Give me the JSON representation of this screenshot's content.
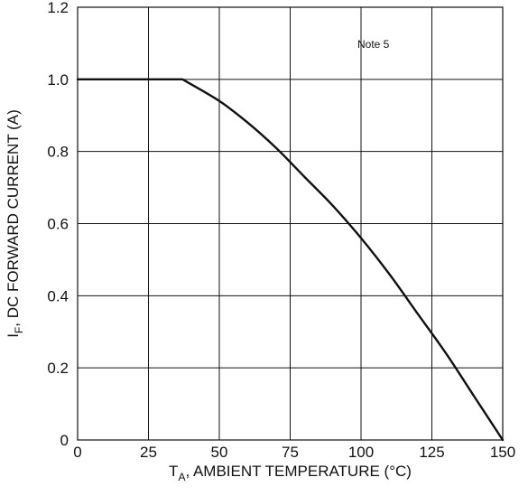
{
  "chart_data": {
    "type": "line",
    "title": "",
    "xlabel": {
      "main": "T",
      "sub": "A",
      "rest": ", AMBIENT TEMPERATURE (°C)"
    },
    "ylabel": {
      "main": "I",
      "sub": "F",
      "rest": ", DC FORWARD CURRENT (A)"
    },
    "xlim": [
      0,
      150
    ],
    "ylim": [
      0,
      1.2
    ],
    "x_ticks": [
      0,
      25,
      50,
      75,
      100,
      125,
      150
    ],
    "x_tick_labels": [
      "0",
      "25",
      "50",
      "75",
      "100",
      "125",
      "150"
    ],
    "y_ticks": [
      0,
      0.2,
      0.4,
      0.6,
      0.8,
      1.0,
      1.2
    ],
    "y_tick_labels": [
      "0",
      "0.2",
      "0.4",
      "0.6",
      "0.8",
      "1.0",
      "1.2"
    ],
    "grid": true,
    "annotation": "Note 5",
    "series": [
      {
        "x": [
          0,
          37,
          50,
          60,
          70,
          80,
          90,
          100,
          110,
          120,
          130,
          140,
          150
        ],
        "y": [
          1.0,
          1.0,
          0.94,
          0.88,
          0.81,
          0.73,
          0.65,
          0.56,
          0.46,
          0.35,
          0.24,
          0.12,
          0.0
        ]
      }
    ]
  }
}
